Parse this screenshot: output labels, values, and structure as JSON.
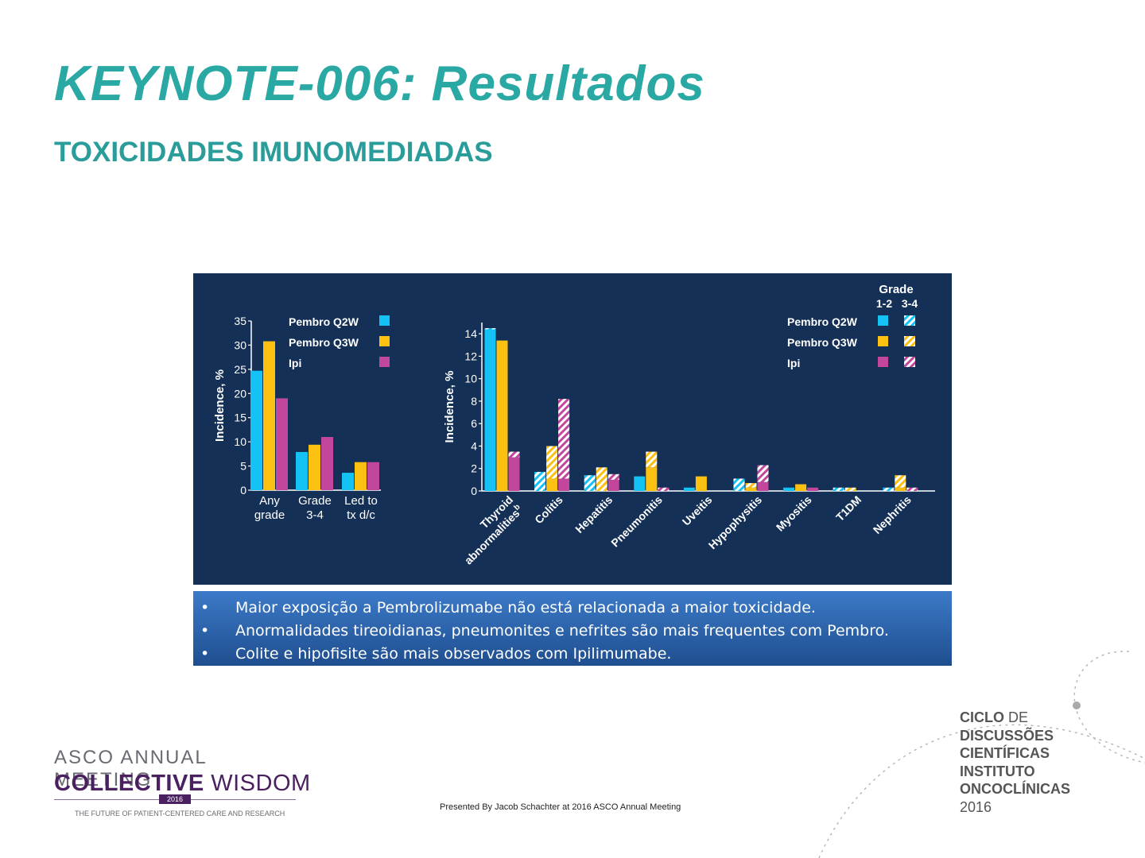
{
  "slide": {
    "title": "KEYNOTE-006: Resultados",
    "subtitle": "TOXICIDADES IMUNOMEDIADAS",
    "footer_note": "Presented By Jacob Schachter at 2016 ASCO Annual Meeting"
  },
  "notes": [
    "Maior exposição a Pembrolizumabe não está relacionada a maior toxicidade.",
    "Anormalidades tireoidianas, pneumonites e nefrites são mais frequentes com Pembro.",
    "Colite e hipofisite são mais observados com Ipilimumabe."
  ],
  "bullet_symbol": "•",
  "logos": {
    "asco_line1": "ASCO ANNUAL MEETING",
    "asco_line2_bold": "COLLECTIVE",
    "asco_line2_light": "WISDOM",
    "asco_year": "2016",
    "asco_tagline": "THE FUTURE OF PATIENT-CENTERED CARE AND RESEARCH",
    "ciclo_lines": [
      {
        "bold": "CICLO",
        "light": " DE"
      },
      {
        "bold": "DISCUSSÕES",
        "light": ""
      },
      {
        "bold": "CIENTÍFICAS",
        "light": ""
      },
      {
        "bold": "INSTITUTO",
        "light": ""
      },
      {
        "bold": "ONCOCLÍNICAS",
        "light": ""
      },
      {
        "bold": "",
        "light": "2016"
      }
    ]
  },
  "colors": {
    "pembro_q2w": "#14c2f5",
    "pembro_q3w": "#fcc010",
    "ipi": "#c2479c",
    "panel_bg": "#143056",
    "axis": "#ffffff"
  },
  "chart_data": [
    {
      "type": "bar",
      "title": "",
      "ylabel": "Incidence, %",
      "ylim": [
        0,
        35
      ],
      "yticks": [
        0,
        5,
        10,
        15,
        20,
        25,
        30,
        35
      ],
      "categories": [
        "Any grade",
        "Grade 3-4",
        "Led to tx d/c"
      ],
      "category_lines": [
        [
          "Any",
          "grade"
        ],
        [
          "Grade",
          "3-4"
        ],
        [
          "Led to",
          "tx d/c"
        ]
      ],
      "legend_position": "top",
      "series": [
        {
          "name": "Pembro Q2W",
          "color": "#14c2f5",
          "values": [
            24.7,
            7.9,
            3.6
          ]
        },
        {
          "name": "Pembro Q3W",
          "color": "#fcc010",
          "values": [
            30.8,
            9.4,
            5.8
          ]
        },
        {
          "name": "Ipi",
          "color": "#c2479c",
          "values": [
            19.0,
            11.0,
            5.8
          ]
        }
      ]
    },
    {
      "type": "bar",
      "stacked": true,
      "title": "",
      "ylabel": "Incidence, %",
      "ylim": [
        0,
        15
      ],
      "yticks": [
        0,
        2,
        4,
        6,
        8,
        10,
        12,
        14
      ],
      "legend_title": "Grade",
      "legend_subtitles": [
        "1-2",
        "3-4"
      ],
      "legend_position": "top-right",
      "categories": [
        "Thyroid abnormalities",
        "Colitis",
        "Hepatitis",
        "Pneumonitis",
        "Uveitis",
        "Hypophysitis",
        "Myositis",
        "T1DM",
        "Nephritis"
      ],
      "category_lines": [
        [
          "Thyroid",
          "abnormalities"
        ],
        [
          "Colitis"
        ],
        [
          "Hepatitis"
        ],
        [
          "Pneumonitis"
        ],
        [
          "Uveitis"
        ],
        [
          "Hypophysitis"
        ],
        [
          "Myositis"
        ],
        [
          "T1DM"
        ],
        [
          "Nephritis"
        ]
      ],
      "category_superscript": "b",
      "series": [
        {
          "name": "Pembro Q2W",
          "color": "#14c2f5",
          "grade_1_2": [
            14.4,
            0.0,
            0.0,
            1.3,
            0.3,
            0.0,
            0.3,
            0.0,
            0.0
          ],
          "grade_3_4": [
            0.1,
            1.7,
            1.4,
            0.0,
            0.0,
            1.1,
            0.0,
            0.3,
            0.3
          ]
        },
        {
          "name": "Pembro Q3W",
          "color": "#fcc010",
          "grade_1_2": [
            13.4,
            1.1,
            0.0,
            2.1,
            1.3,
            0.3,
            0.6,
            0.0,
            0.3
          ],
          "grade_3_4": [
            0.0,
            2.9,
            2.1,
            1.4,
            0.0,
            0.4,
            0.0,
            0.3,
            1.1
          ]
        },
        {
          "name": "Ipi",
          "color": "#c2479c",
          "grade_1_2": [
            3.0,
            1.1,
            1.0,
            0.0,
            0.0,
            0.8,
            0.3,
            0.0,
            0.0
          ],
          "grade_3_4": [
            0.5,
            7.1,
            0.5,
            0.3,
            0.0,
            1.5,
            0.0,
            0.0,
            0.3
          ]
        }
      ]
    }
  ]
}
